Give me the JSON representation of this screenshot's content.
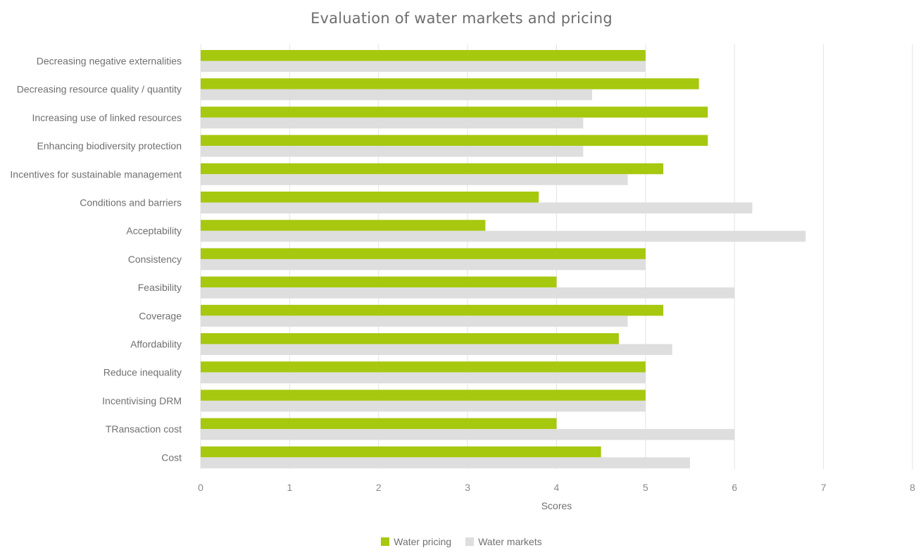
{
  "chart_data": {
    "type": "bar",
    "orientation": "horizontal",
    "title": "Evaluation of water markets and pricing",
    "xlabel": "Scores",
    "ylabel": "",
    "xlim": [
      0,
      8
    ],
    "x_ticks": [
      "0",
      "1",
      "2",
      "3",
      "4",
      "5",
      "6",
      "7",
      "8"
    ],
    "grid": "vertical",
    "legend_position": "bottom",
    "categories": [
      "Decreasing negative externalities",
      "Decreasing resource quality / quantity",
      "Increasing use of linked resources",
      "Enhancing biodiversity protection",
      "Incentives for sustainable management",
      "Conditions and barriers",
      "Acceptability",
      "Consistency",
      "Feasibility",
      "Coverage",
      "Affordability",
      "Reduce inequality",
      "Incentivising DRM",
      "TRansaction cost",
      "Cost"
    ],
    "series": [
      {
        "name": "Water pricing",
        "color": "#a6c80f",
        "values": [
          5.0,
          5.6,
          5.7,
          5.7,
          5.2,
          3.8,
          3.2,
          5.0,
          4.0,
          5.2,
          4.7,
          5.0,
          5.0,
          4.0,
          4.5
        ]
      },
      {
        "name": "Water markets",
        "color": "#dedede",
        "values": [
          5.0,
          4.4,
          4.3,
          4.3,
          4.8,
          6.2,
          6.8,
          5.0,
          6.0,
          4.8,
          5.3,
          5.0,
          5.0,
          6.0,
          5.5
        ]
      }
    ]
  }
}
